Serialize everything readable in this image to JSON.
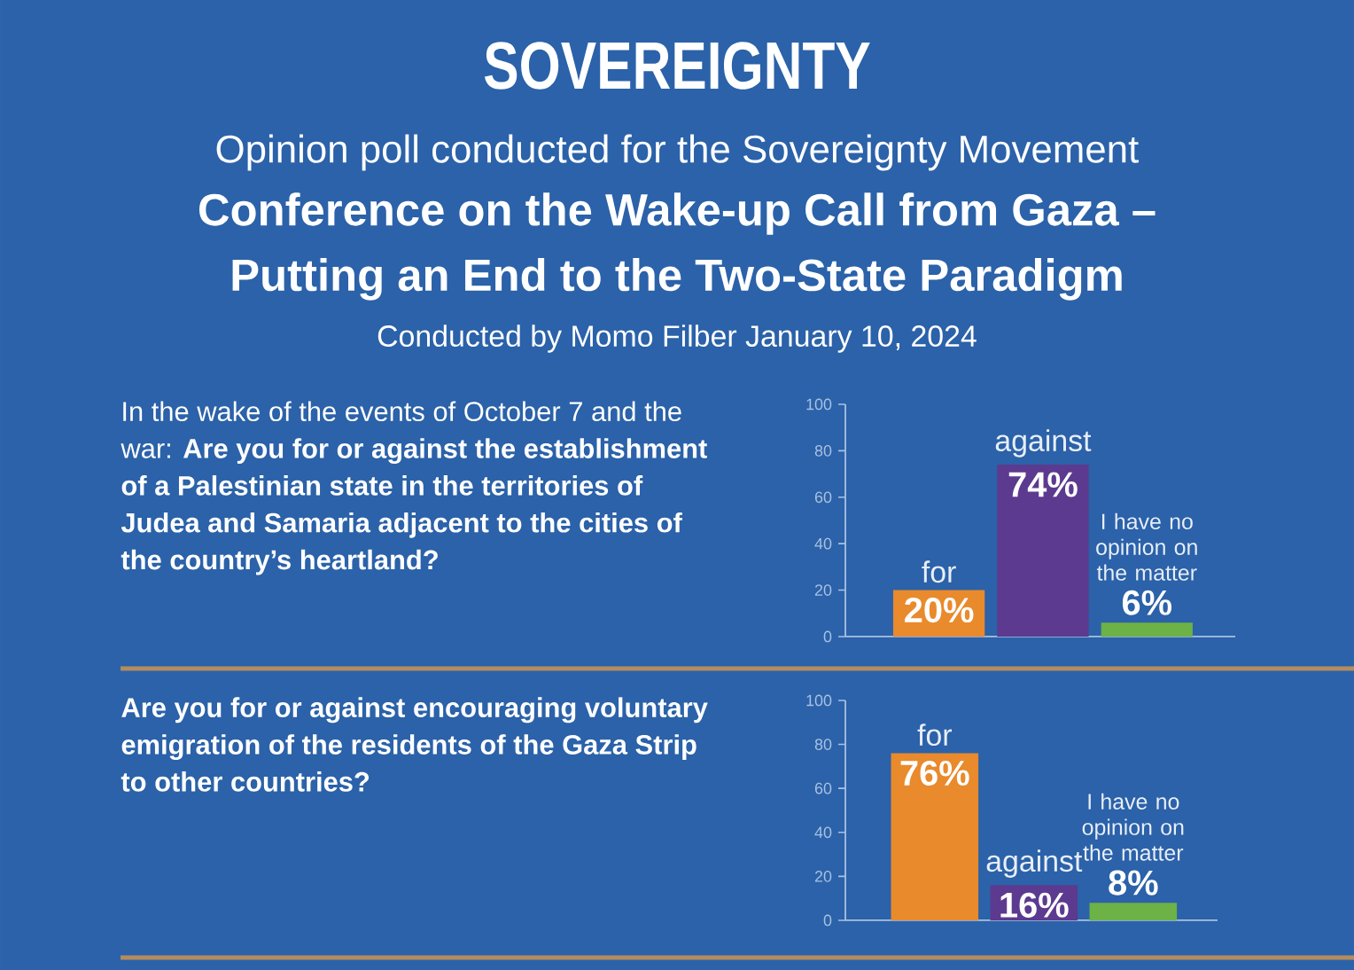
{
  "chart_data": [
    {
      "type": "bar",
      "annotations": [
        "SOVEREIGNTY",
        "Opinion poll conducted for the Sovereignty Movement",
        "Conference on the Wake-up Call from Gaza – Putting an End to the Two-State Paradigm",
        "Conducted by Momo Filber January 10, 2024"
      ],
      "title": "In the wake of the events of October 7 and the war: **Are you for or against the establishment of a Palestinian state in the territories of Judea and Samaria adjacent to the cities of the country’s heartland?**",
      "categories": [
        "for",
        "against",
        "I have no opinion on the matter"
      ],
      "values": [
        20,
        74,
        6
      ],
      "colors": [
        "#e98a2c",
        "#5c3a8f",
        "#6cb246"
      ],
      "value_labels": [
        "20%",
        "74%",
        "6%"
      ],
      "ylim": [
        0,
        100
      ],
      "yticks": [
        0,
        20,
        40,
        60,
        80,
        100
      ]
    },
    {
      "type": "bar",
      "title": "Are you for or against encouraging voluntary emigration of the residents of the Gaza Strip to other countries?",
      "categories": [
        "for",
        "against",
        "I have no opinion on the matter"
      ],
      "values": [
        76,
        16,
        8
      ],
      "colors": [
        "#e98a2c",
        "#5c3a8f",
        "#6cb246"
      ],
      "value_labels": [
        "76%",
        "16%",
        "8%"
      ],
      "ylim": [
        0,
        100
      ],
      "yticks": [
        0,
        20,
        40,
        60,
        80,
        100
      ]
    }
  ]
}
